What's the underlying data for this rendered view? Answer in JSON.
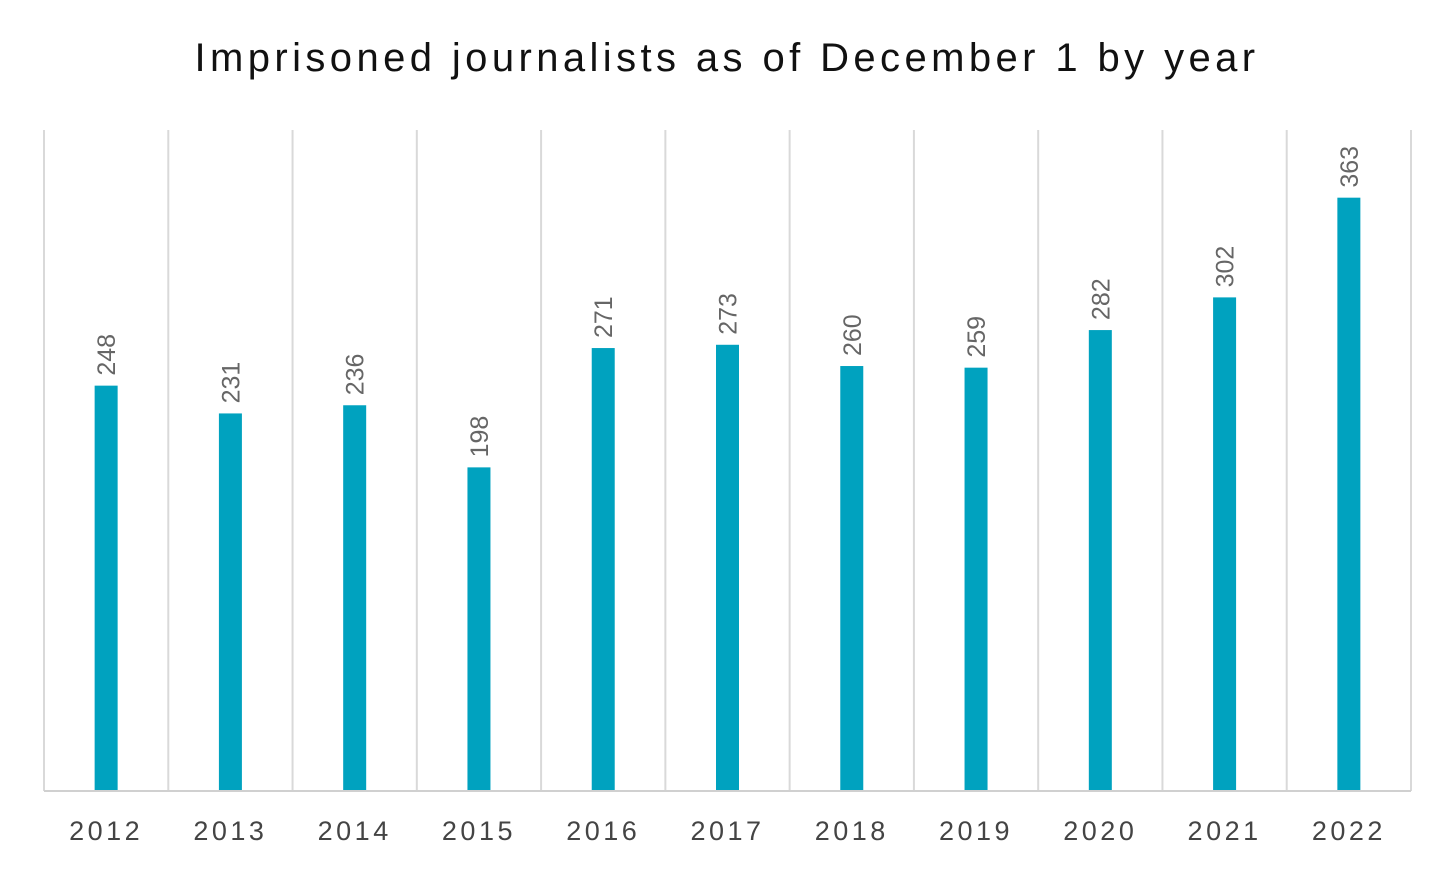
{
  "chart_data": {
    "type": "bar",
    "title": "Imprisoned journalists as of December 1 by year",
    "xlabel": "",
    "ylabel": "",
    "categories": [
      "2012",
      "2013",
      "2014",
      "2015",
      "2016",
      "2017",
      "2018",
      "2019",
      "2020",
      "2021",
      "2022"
    ],
    "series": [
      {
        "values": [
          248,
          231,
          236,
          198,
          271,
          273,
          260,
          259,
          282,
          302,
          363
        ]
      }
    ],
    "ylim": [
      0,
      400
    ],
    "grid": "vertical category separators",
    "legend": "none",
    "data_labels": "rotated above bars",
    "bar_color": "#00A2BF",
    "grid_color": "#D9D9D9",
    "axis_color": "#D0D0D0"
  }
}
